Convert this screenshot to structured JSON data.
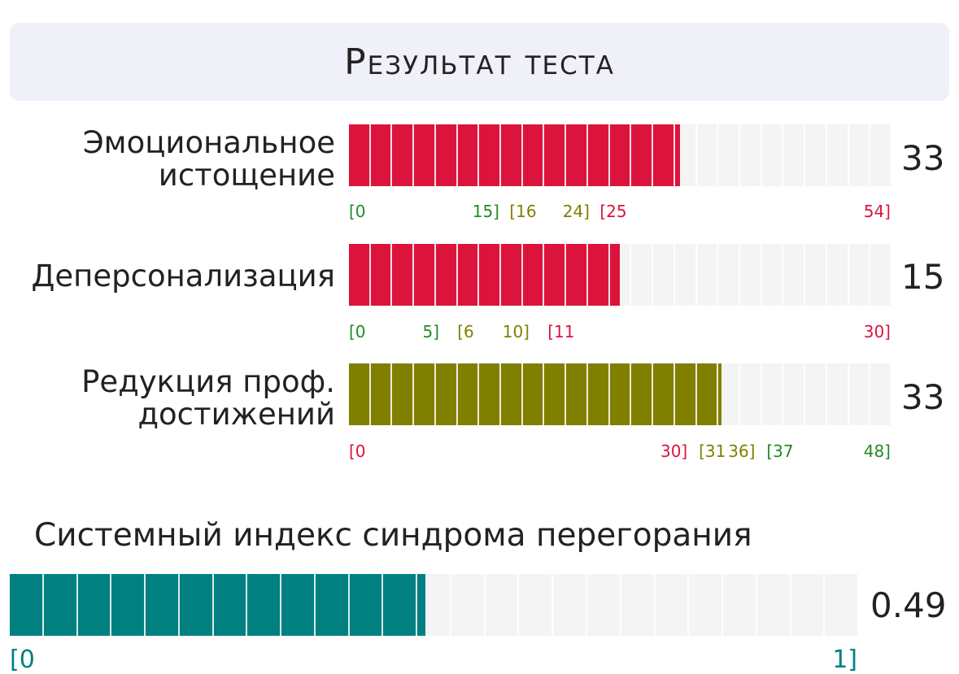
{
  "header": {
    "title": "Результат теста"
  },
  "colors": {
    "red": "#dc143c",
    "olive": "#808000",
    "teal": "#008080",
    "green": "#228b22",
    "track": "#f4f4f4"
  },
  "scales": [
    {
      "label_lines": [
        "Эмоциональное",
        "истощение"
      ],
      "score": "33",
      "value": 33,
      "max": 54,
      "fill_color": "red",
      "ticks": [
        {
          "text": "[0",
          "value": 0,
          "color": "green"
        },
        {
          "text": "15]",
          "value": 15,
          "color": "green"
        },
        {
          "text": "[16",
          "value": 16,
          "color": "olive"
        },
        {
          "text": "24]",
          "value": 24,
          "color": "olive"
        },
        {
          "text": "[25",
          "value": 25,
          "color": "red"
        },
        {
          "text": "54]",
          "value": 54,
          "color": "red"
        }
      ]
    },
    {
      "label_lines": [
        "Деперсонализация"
      ],
      "score": "15",
      "value": 15,
      "max": 30,
      "fill_color": "red",
      "ticks": [
        {
          "text": "[0",
          "value": 0,
          "color": "green"
        },
        {
          "text": "5]",
          "value": 5,
          "color": "green"
        },
        {
          "text": "[6",
          "value": 6,
          "color": "olive"
        },
        {
          "text": "10]",
          "value": 10,
          "color": "olive"
        },
        {
          "text": "[11",
          "value": 11,
          "color": "red"
        },
        {
          "text": "30]",
          "value": 30,
          "color": "red"
        }
      ]
    },
    {
      "label_lines": [
        "Редукция проф.",
        "достижений"
      ],
      "score": "33",
      "value": 33,
      "max": 48,
      "fill_color": "olive",
      "ticks": [
        {
          "text": "[0",
          "value": 0,
          "color": "red"
        },
        {
          "text": "30]",
          "value": 30,
          "color": "red"
        },
        {
          "text": "[31",
          "value": 31,
          "color": "olive"
        },
        {
          "text": "36]",
          "value": 36,
          "color": "olive"
        },
        {
          "text": "[37",
          "value": 37,
          "color": "green"
        },
        {
          "text": "48]",
          "value": 48,
          "color": "green"
        }
      ]
    }
  ],
  "index": {
    "title": "Системный индекс синдрома перегорания",
    "score": "0.49",
    "value": 0.49,
    "max": 1,
    "fill_color": "teal",
    "ticks": [
      {
        "text": "[0",
        "value": 0
      },
      {
        "text": "1]",
        "value": 1
      }
    ]
  }
}
